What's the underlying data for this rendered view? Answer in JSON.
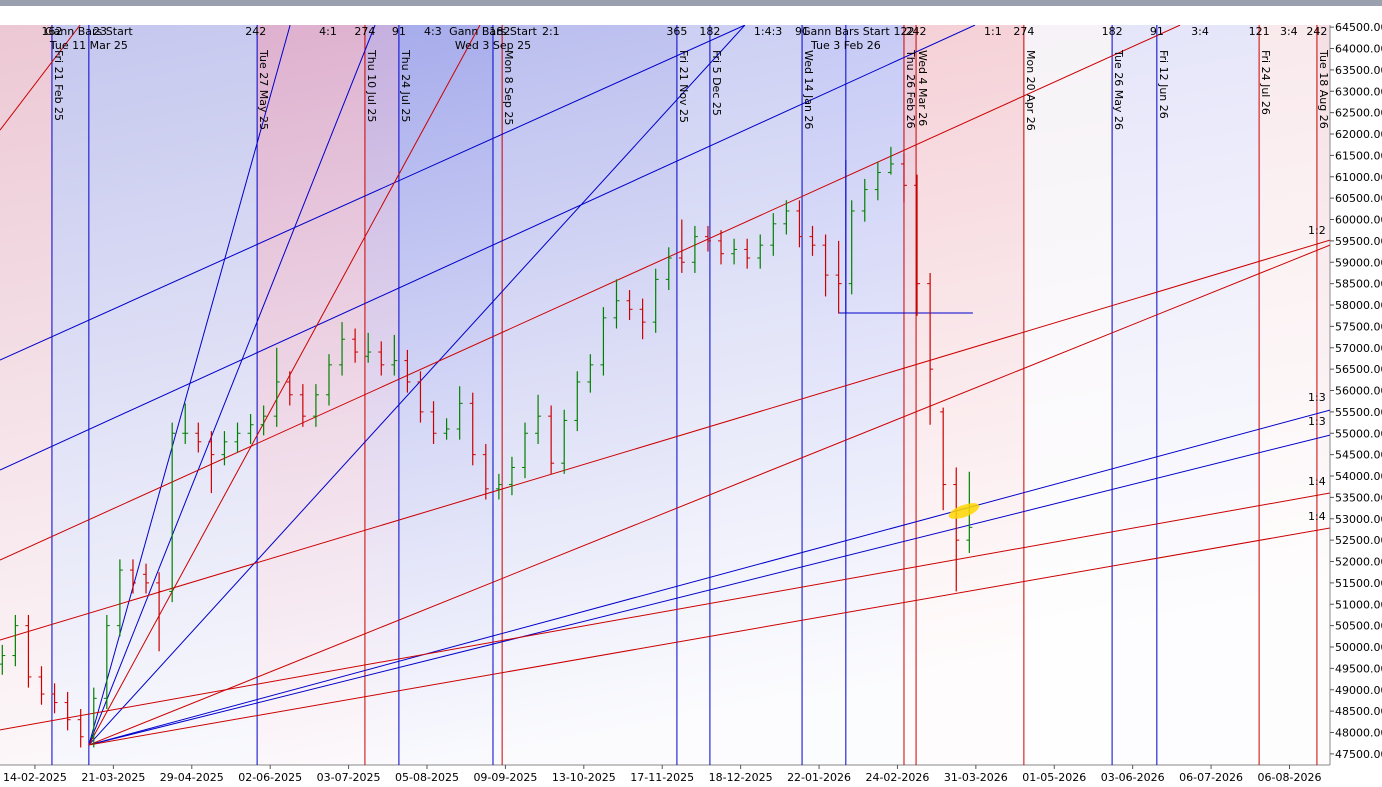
{
  "chart_data": {
    "type": "ohlc",
    "xlim": [
      -10.7,
      396.4
    ],
    "ylim": [
      47240,
      64550
    ],
    "up_color": "#008000",
    "down_color": "#cc0000",
    "x": [
      -10,
      -6,
      -2,
      2,
      6,
      10,
      14,
      18,
      22,
      26,
      30,
      34,
      38,
      42,
      46,
      50,
      54,
      58,
      62,
      66,
      70,
      74,
      78,
      82,
      86,
      90,
      94,
      98,
      102,
      106,
      110,
      114,
      118,
      122,
      126,
      130,
      134,
      138,
      142,
      146,
      150,
      154,
      158,
      162,
      166,
      170,
      174,
      178,
      182,
      186,
      190,
      194,
      198,
      202,
      206,
      210,
      214,
      218,
      222,
      226,
      230,
      234,
      238,
      242,
      246,
      250,
      254,
      258,
      262,
      266,
      270,
      274,
      278,
      282,
      286
    ],
    "ohlc": [
      [
        49600,
        50050,
        49350,
        49800
      ],
      [
        49800,
        50750,
        49550,
        50500
      ],
      [
        50500,
        50750,
        49050,
        49300
      ],
      [
        49300,
        49550,
        48650,
        48900
      ],
      [
        48900,
        49150,
        48450,
        48700
      ],
      [
        48700,
        48950,
        48050,
        48300
      ],
      [
        48300,
        48550,
        47650,
        47900
      ],
      [
        47900,
        49050,
        47650,
        48800
      ],
      [
        48800,
        50750,
        48550,
        50500
      ],
      [
        50500,
        52050,
        50250,
        51800
      ],
      [
        51800,
        52050,
        51250,
        51500
      ],
      [
        51700,
        51950,
        51250,
        51500
      ],
      [
        51500,
        51750,
        49900,
        51300
      ],
      [
        51300,
        55250,
        51050,
        55000
      ],
      [
        55000,
        55700,
        54750,
        55000
      ],
      [
        55000,
        55250,
        54550,
        54800
      ],
      [
        54800,
        55050,
        53600,
        54500
      ],
      [
        54500,
        55050,
        54250,
        54800
      ],
      [
        54800,
        55250,
        54550,
        55000
      ],
      [
        55000,
        55450,
        54750,
        55200
      ],
      [
        55200,
        55650,
        54950,
        55400
      ],
      [
        55400,
        57000,
        55150,
        56200
      ],
      [
        56200,
        56450,
        55650,
        55900
      ],
      [
        55900,
        56150,
        55150,
        55400
      ],
      [
        55400,
        56150,
        55150,
        55900
      ],
      [
        55900,
        56850,
        55650,
        56600
      ],
      [
        56600,
        57600,
        56350,
        57200
      ],
      [
        57200,
        57450,
        56650,
        56900
      ],
      [
        56800,
        57350,
        56650,
        56900
      ],
      [
        56900,
        57150,
        56350,
        56600
      ],
      [
        56600,
        57300,
        56350,
        56700
      ],
      [
        56700,
        56950,
        55950,
        56200
      ],
      [
        56200,
        56450,
        55250,
        55500
      ],
      [
        55500,
        55750,
        54750,
        55000
      ],
      [
        55000,
        55350,
        54850,
        55100
      ],
      [
        55100,
        56100,
        54850,
        55700
      ],
      [
        55700,
        55950,
        54250,
        54500
      ],
      [
        54500,
        54750,
        53450,
        53700
      ],
      [
        53700,
        54050,
        53450,
        53800
      ],
      [
        53800,
        54450,
        53550,
        54200
      ],
      [
        54200,
        55250,
        53950,
        55000
      ],
      [
        55000,
        55900,
        54750,
        55400
      ],
      [
        55400,
        55650,
        54050,
        54300
      ],
      [
        54300,
        55550,
        54050,
        55300
      ],
      [
        55300,
        56450,
        55050,
        56200
      ],
      [
        56200,
        56850,
        55950,
        56600
      ],
      [
        56600,
        57950,
        56350,
        57700
      ],
      [
        57700,
        58600,
        57450,
        58100
      ],
      [
        58100,
        58350,
        57650,
        57900
      ],
      [
        57900,
        58150,
        57200,
        57600
      ],
      [
        57600,
        58850,
        57350,
        58600
      ],
      [
        58600,
        59350,
        58350,
        59100
      ],
      [
        59100,
        60000,
        58750,
        59000
      ],
      [
        59000,
        59850,
        58750,
        59600
      ],
      [
        59600,
        59850,
        59250,
        59500
      ],
      [
        59500,
        59750,
        58950,
        59200
      ],
      [
        59200,
        59550,
        58950,
        59300
      ],
      [
        59300,
        59550,
        58850,
        59100
      ],
      [
        59100,
        59650,
        58850,
        59400
      ],
      [
        59400,
        60150,
        59150,
        59900
      ],
      [
        59900,
        60450,
        59650,
        60200
      ],
      [
        60200,
        60450,
        59350,
        59600
      ],
      [
        59600,
        59850,
        59150,
        59400
      ],
      [
        59400,
        59650,
        58200,
        58700
      ],
      [
        58700,
        59500,
        57800,
        58500
      ],
      [
        58500,
        60450,
        58250,
        60200
      ],
      [
        60200,
        60950,
        59950,
        60700
      ],
      [
        60700,
        61350,
        60450,
        61100
      ],
      [
        61100,
        61700,
        61050,
        61300
      ],
      [
        61300,
        61550,
        60400,
        60800
      ],
      [
        60800,
        61050,
        57750,
        58500
      ],
      [
        58500,
        58750,
        55200,
        56500
      ],
      [
        55500,
        55600,
        53200,
        53800
      ],
      [
        53800,
        54200,
        51300,
        52500
      ],
      [
        52500,
        54100,
        52200,
        52800
      ]
    ],
    "yticks": [
      {
        "value": 47500,
        "label": "47500.00"
      },
      {
        "value": 48000,
        "label": "48000.00"
      },
      {
        "value": 48500,
        "label": "48500.00"
      },
      {
        "value": 49000,
        "label": "49000.00"
      },
      {
        "value": 49500,
        "label": "49500.00"
      },
      {
        "value": 50000,
        "label": "50000.00"
      },
      {
        "value": 50500,
        "label": "50500.00"
      },
      {
        "value": 51000,
        "label": "51000.00"
      },
      {
        "value": 51500,
        "label": "51500.00"
      },
      {
        "value": 52000,
        "label": "52000.00"
      },
      {
        "value": 52500,
        "label": "52500.00"
      },
      {
        "value": 53000,
        "label": "53000.00"
      },
      {
        "value": 53500,
        "label": "53500.00"
      },
      {
        "value": 54000,
        "label": "54000.00"
      },
      {
        "value": 54500,
        "label": "54500.00"
      },
      {
        "value": 55000,
        "label": "55000.00"
      },
      {
        "value": 55500,
        "label": "55500.00"
      },
      {
        "value": 56000,
        "label": "56000.00"
      },
      {
        "value": 56500,
        "label": "56500.00"
      },
      {
        "value": 57000,
        "label": "57000.00"
      },
      {
        "value": 57500,
        "label": "57500.00"
      },
      {
        "value": 58000,
        "label": "58000.00"
      },
      {
        "value": 58500,
        "label": "58500.00"
      },
      {
        "value": 59000,
        "label": "59000.00"
      },
      {
        "value": 59500,
        "label": "59500.00"
      },
      {
        "value": 60000,
        "label": "60000.00"
      },
      {
        "value": 60500,
        "label": "60500.00"
      },
      {
        "value": 61000,
        "label": "61000.00"
      },
      {
        "value": 61500,
        "label": "61500.00"
      },
      {
        "value": 62000,
        "label": "62000.00"
      },
      {
        "value": 62500,
        "label": "62500.00"
      },
      {
        "value": 63000,
        "label": "63000.00"
      },
      {
        "value": 63500,
        "label": "63500.00"
      },
      {
        "value": 64000,
        "label": "64000.00"
      },
      {
        "value": 64500,
        "label": "64500.00"
      }
    ],
    "xticks": [
      {
        "value": 0,
        "label": "14-02-2025"
      },
      {
        "value": 24,
        "label": "21-03-2025"
      },
      {
        "value": 48,
        "label": "29-04-2025"
      },
      {
        "value": 72,
        "label": "02-06-2025"
      },
      {
        "value": 96,
        "label": "03-07-2025"
      },
      {
        "value": 120,
        "label": "05-08-2025"
      },
      {
        "value": 144,
        "label": "09-09-2025"
      },
      {
        "value": 168,
        "label": "13-10-2025"
      },
      {
        "value": 192,
        "label": "17-11-2025"
      },
      {
        "value": 216,
        "label": "18-12-2025"
      },
      {
        "value": 240,
        "label": "22-01-2026"
      },
      {
        "value": 264,
        "label": "24-02-2026"
      },
      {
        "value": 288,
        "label": "31-03-2026"
      },
      {
        "value": 312,
        "label": "01-05-2026"
      },
      {
        "value": 336,
        "label": "03-06-2026"
      },
      {
        "value": 360,
        "label": "06-07-2026"
      },
      {
        "value": 384,
        "label": "06-08-2026"
      }
    ],
    "date_lines": [
      {
        "label": "Fri 21 Feb 25",
        "x": 5.2,
        "color": "#0000cc"
      },
      {
        "label": "Tue 27 May 25",
        "x": 68,
        "color": "#0000cc"
      },
      {
        "label": "Thu 10 Jul 25",
        "x": 101,
        "color": "#cc0000"
      },
      {
        "label": "Thu 24 Jul 25",
        "x": 111.4,
        "color": "#0000cc"
      },
      {
        "label": "Mon 8 Sep 25",
        "x": 143,
        "color": "#cc0000"
      },
      {
        "label": "Fri 21 Nov 25",
        "x": 196.5,
        "color": "#0000cc"
      },
      {
        "label": "Fri 5 Dec 25",
        "x": 206.6,
        "color": "#0000cc"
      },
      {
        "label": "Wed 14 Jan 26",
        "x": 234.8,
        "color": "#0000cc"
      },
      {
        "label": "Thu 26 Feb 26",
        "x": 266,
        "color": "#cc0000"
      },
      {
        "label": "Wed 4 Mar 26",
        "x": 269.7,
        "color": "#cc0000"
      },
      {
        "label": "Mon 20 Apr 26",
        "x": 302.7,
        "color": "#cc0000"
      },
      {
        "label": "Tue 26 May 26",
        "x": 329.7,
        "color": "#0000cc"
      },
      {
        "label": "Fri 12 Jun 26",
        "x": 343.4,
        "color": "#0000cc"
      },
      {
        "label": "Fri 24 Jul 26",
        "x": 374.7,
        "color": "#cc0000"
      },
      {
        "label": "Tue 18 Aug 26",
        "x": 392.4,
        "color": "#cc0000"
      }
    ],
    "start_lines": [
      {
        "label": "Gann Bars Start",
        "date": "Tue 11 Mar 25",
        "x": 16.5,
        "color": "#0000cc"
      },
      {
        "label": "Gann Bars Start",
        "date": "Wed 3 Sep 25",
        "x": 140.2,
        "color": "#0000cc"
      },
      {
        "label": "Gann Bars Start",
        "date": "Tue 3 Feb 26",
        "x": 248.2,
        "color": "#0000cc"
      }
    ],
    "top_labels": [
      {
        "text": "162",
        "x": 5.2
      },
      {
        "text": "23",
        "x": 19.9
      },
      {
        "text": "242",
        "x": 67.6
      },
      {
        "text": "4:1",
        "x": 89.7
      },
      {
        "text": "274",
        "x": 101
      },
      {
        "text": "91",
        "x": 111.4
      },
      {
        "text": "4:3",
        "x": 121.8
      },
      {
        "text": "182",
        "x": 142.3
      },
      {
        "text": "2:1",
        "x": 157.9
      },
      {
        "text": "365",
        "x": 196.5
      },
      {
        "text": "182",
        "x": 206.6
      },
      {
        "text": "1:4:3",
        "x": 224.4
      },
      {
        "text": "91",
        "x": 234.8
      },
      {
        "text": "122",
        "x": 266
      },
      {
        "text": "242",
        "x": 269.7
      },
      {
        "text": "1:1",
        "x": 293.2
      },
      {
        "text": "274",
        "x": 302.7
      },
      {
        "text": "182",
        "x": 329.7
      },
      {
        "text": "91",
        "x": 343.4
      },
      {
        "text": "3:4",
        "x": 356.6
      },
      {
        "text": "121",
        "x": 374.7
      },
      {
        "text": "3:4",
        "x": 383.8
      },
      {
        "text": "242",
        "x": 392.4
      }
    ],
    "fan_lines": [
      {
        "color": "#0000cc",
        "x": [
          16.5,
          78.1
        ],
        "y": [
          47709,
          64547
        ]
      },
      {
        "color": "#0000cc",
        "x": [
          16.5,
          104.1
        ],
        "y": [
          47709,
          64547
        ]
      },
      {
        "color": "#0000cc",
        "x": [
          16.5,
          217.3
        ],
        "y": [
          47709,
          64547
        ]
      },
      {
        "color": "#0000cc",
        "x": [
          16.5,
          396.4
        ],
        "y": [
          47709,
          55543
        ]
      },
      {
        "color": "#0000cc",
        "x": [
          16.5,
          396.4
        ],
        "y": [
          47709,
          54958
        ]
      },
      {
        "color": "#0000cc",
        "x": [
          -10.7,
          217.3
        ],
        "y": [
          56712,
          64547
        ]
      },
      {
        "color": "#0000cc",
        "x": [
          -10.7,
          287.7
        ],
        "y": [
          54140,
          64547
        ]
      },
      {
        "color": "#cc0000",
        "x": [
          -10.7,
          13.8
        ],
        "y": [
          62091,
          64547
        ]
      },
      {
        "color": "#cc0000",
        "x": [
          16.5,
          136.2
        ],
        "y": [
          47709,
          64547
        ]
      },
      {
        "color": "#cc0000",
        "x": [
          16.5,
          396.4
        ],
        "y": [
          47709,
          59402
        ]
      },
      {
        "color": "#cc0000",
        "x": [
          -10.7,
          350.5
        ],
        "y": [
          52035,
          64547
        ]
      },
      {
        "color": "#cc0000",
        "x": [
          -10.7,
          396.4
        ],
        "y": [
          50164,
          59519
        ]
      },
      {
        "color": "#cc0000",
        "x": [
          -10.7,
          396.4
        ],
        "y": [
          48060,
          53602
        ]
      },
      {
        "color": "#cc0000",
        "x": [
          16.5,
          396.4
        ],
        "y": [
          47709,
          52784
        ]
      },
      {
        "color": "#0000cc",
        "x": [
          246,
          287.1
        ],
        "y": [
          57812,
          57812
        ]
      },
      {
        "color": "#0000cc",
        "x": [
          248.2,
          248.2
        ],
        "y": [
          61390,
          57812
        ]
      }
    ],
    "corner_labels": [
      {
        "text": "1:2",
        "y": 59612
      },
      {
        "text": "1:3",
        "y": 55707
      },
      {
        "text": "1:3",
        "y": 55146
      },
      {
        "text": "1:4",
        "y": 53742
      },
      {
        "text": "1:4",
        "y": 52924
      }
    ]
  }
}
